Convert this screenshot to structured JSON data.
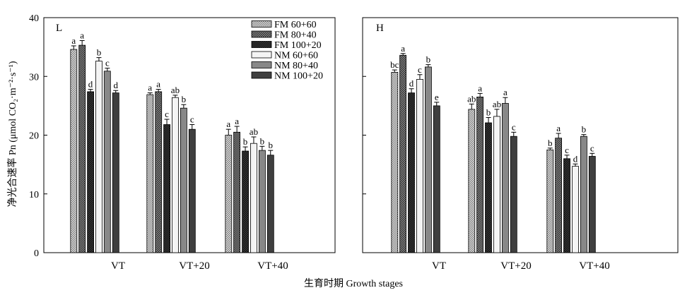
{
  "figure": {
    "y_axis_label": "净光合速率 Pn (μmol CO₂·m⁻²·s⁻¹)",
    "x_axis_label": "生育时期 Growth stages"
  },
  "chart_data": [
    {
      "type": "bar",
      "panel_label": "L",
      "categories": [
        "VT",
        "VT+20",
        "VT+40"
      ],
      "ylim": [
        0,
        40
      ],
      "yticks": [
        "0",
        "10",
        "20",
        "30",
        "40"
      ],
      "show_ytick_labels": true,
      "legend": {
        "placement": "top-right",
        "visible": true
      },
      "series": [
        {
          "name": "FM 60+60",
          "pattern": "fm1",
          "values": [
            34.6,
            26.9,
            20.0
          ],
          "errors": [
            0.6,
            0.3,
            1.0
          ],
          "letters": [
            "a",
            "a",
            "a"
          ]
        },
        {
          "name": "FM 80+40",
          "pattern": "fm2",
          "values": [
            35.3,
            27.4,
            20.5
          ],
          "errors": [
            0.8,
            0.4,
            1.0
          ],
          "letters": [
            "a",
            "a",
            "a"
          ]
        },
        {
          "name": "FM 100+20",
          "pattern": "fm3",
          "values": [
            27.4,
            21.8,
            17.3
          ],
          "errors": [
            0.4,
            0.9,
            0.7
          ],
          "letters": [
            "d",
            "c",
            "b"
          ]
        },
        {
          "name": "NM 60+60",
          "pattern": "nm1",
          "values": [
            32.6,
            26.4,
            18.6
          ],
          "errors": [
            0.6,
            0.4,
            1.1
          ],
          "letters": [
            "b",
            "ab",
            "ab"
          ]
        },
        {
          "name": "NM 80+40",
          "pattern": "nm2",
          "values": [
            30.9,
            24.6,
            17.4
          ],
          "errors": [
            0.5,
            0.6,
            0.7
          ],
          "letters": [
            "c",
            "b",
            "b"
          ]
        },
        {
          "name": "NM 100+20",
          "pattern": "nm3",
          "values": [
            27.2,
            21.0,
            16.6
          ],
          "errors": [
            0.4,
            0.8,
            0.8
          ],
          "letters": [
            "d",
            "c",
            "b"
          ]
        }
      ]
    },
    {
      "type": "bar",
      "panel_label": "H",
      "categories": [
        "VT",
        "VT+20",
        "VT+40"
      ],
      "ylim": [
        0,
        40
      ],
      "yticks": [
        "",
        "",
        "",
        "",
        ""
      ],
      "show_ytick_labels": false,
      "legend": {
        "visible": false
      },
      "series": [
        {
          "name": "FM 60+60",
          "pattern": "fm1",
          "values": [
            30.7,
            24.4,
            17.5
          ],
          "errors": [
            0.4,
            0.9,
            0.3
          ],
          "letters": [
            "bc",
            "ab",
            "b"
          ]
        },
        {
          "name": "FM 80+40",
          "pattern": "fm2",
          "values": [
            33.6,
            26.5,
            19.5
          ],
          "errors": [
            0.3,
            0.6,
            0.8
          ],
          "letters": [
            "a",
            "a",
            "a"
          ]
        },
        {
          "name": "FM 100+20",
          "pattern": "fm3",
          "values": [
            27.2,
            22.1,
            16.0
          ],
          "errors": [
            0.7,
            0.9,
            0.6
          ],
          "letters": [
            "d",
            "b",
            "c"
          ]
        },
        {
          "name": "NM 60+60",
          "pattern": "nm1",
          "values": [
            29.5,
            23.2,
            14.7
          ],
          "errors": [
            0.8,
            1.2,
            0.4
          ],
          "letters": [
            "c",
            "ab",
            "d"
          ]
        },
        {
          "name": "NM 80+40",
          "pattern": "nm2",
          "values": [
            31.6,
            25.4,
            19.8
          ],
          "errors": [
            0.4,
            1.0,
            0.3
          ],
          "letters": [
            "b",
            "a",
            "b"
          ]
        },
        {
          "name": "NM 100+20",
          "pattern": "nm3",
          "values": [
            25.0,
            19.8,
            16.4
          ],
          "errors": [
            0.6,
            0.7,
            0.5
          ],
          "letters": [
            "e",
            "c",
            "c"
          ]
        }
      ]
    }
  ]
}
